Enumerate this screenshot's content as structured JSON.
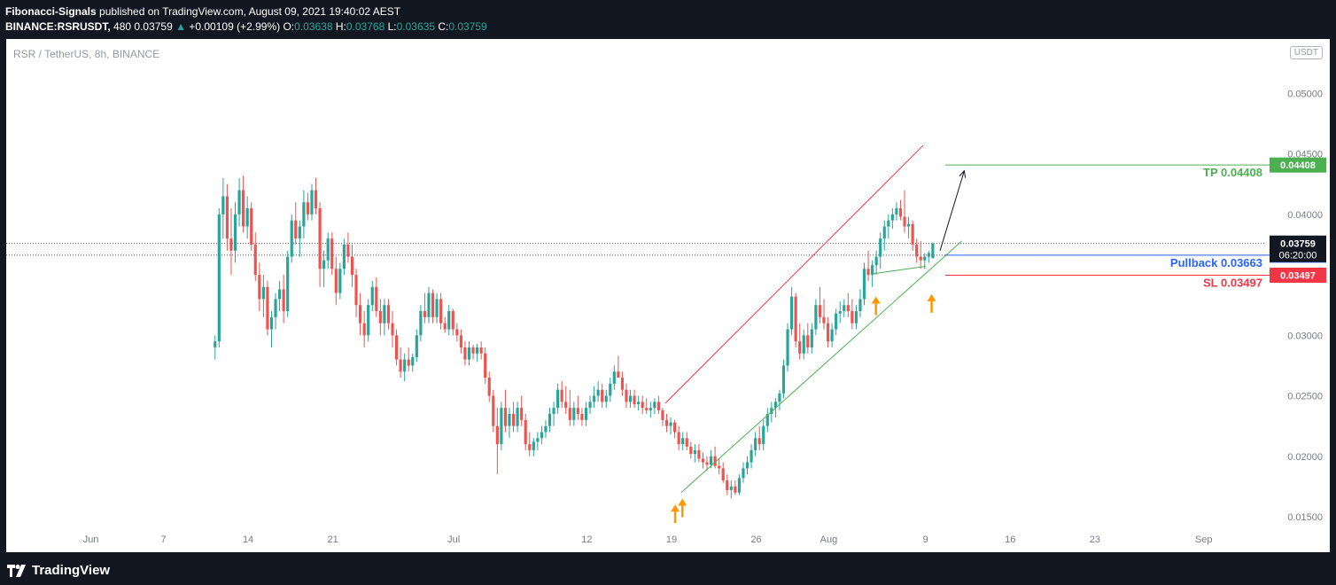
{
  "header": {
    "publisher": "Fibonacci-Signals",
    "published_text": "published on TradingView.com, August 09, 2021 19:40:02 AEST",
    "symbol": "BINANCE:RSRUSDT,",
    "interval": "480",
    "last": "0.03759",
    "change_arrow": "▲",
    "change": "+0.00109 (+2.99%)",
    "open_label": "O:",
    "open": "0.03638",
    "high_label": "H:",
    "high": "0.03768",
    "low_label": "L:",
    "low": "0.03635",
    "close_label": "C:",
    "close": "0.03759"
  },
  "chart": {
    "symbol_label": "RSR / TetherUS, 8h, BINANCE",
    "currency": "USDT"
  },
  "footer": {
    "brand": "TradingView",
    "logo_icon": "tradingview-logo-icon"
  },
  "colors": {
    "up": "#26a69a",
    "down": "#ef5350",
    "background": "#131722",
    "tp": "#4caf50",
    "sl": "#f23645",
    "pullback": "#2962ff",
    "price": "#131722",
    "arrow": "#ff9800",
    "channel_upper": "#f23645",
    "channel_lower": "#4caf50"
  },
  "chart_data": {
    "type": "candlestick",
    "symbol": "RSR / TetherUS",
    "interval": "8h",
    "exchange": "BINANCE",
    "ylim": [
      0.0139,
      0.0545
    ],
    "y_ticks": [
      "0.05000",
      "0.04500",
      "0.04000",
      "0.03000",
      "0.02500",
      "0.02000",
      "0.01500"
    ],
    "x_ticks": [
      {
        "label": "Jun",
        "day": 0
      },
      {
        "label": "7",
        "day": 6
      },
      {
        "label": "14",
        "day": 13
      },
      {
        "label": "21",
        "day": 20
      },
      {
        "label": "Jul",
        "day": 30
      },
      {
        "label": "12",
        "day": 41
      },
      {
        "label": "19",
        "day": 48
      },
      {
        "label": "26",
        "day": 55
      },
      {
        "label": "Aug",
        "day": 61
      },
      {
        "label": "9",
        "day": 69
      },
      {
        "label": "16",
        "day": 76
      },
      {
        "label": "23",
        "day": 83
      },
      {
        "label": "Sep",
        "day": 92
      }
    ],
    "x_range_days": [
      -7,
      97
    ],
    "levels": [
      {
        "name": "TP",
        "label": "TP 0.04408",
        "value": 0.04408,
        "badge": "0.04408",
        "color": "#4caf50"
      },
      {
        "name": "Pullback",
        "label": "Pullback 0.03663",
        "value": 0.03663,
        "badge": "0.03663",
        "color": "#2962ff"
      },
      {
        "name": "SL",
        "label": "SL 0.03497",
        "value": 0.03497,
        "badge": "0.03497",
        "color": "#f23645"
      }
    ],
    "last_price": {
      "value": 0.03759,
      "label": "0.03759",
      "countdown": "06:20:00"
    },
    "hline_dotted": [
      0.03759,
      0.03663
    ],
    "channel": {
      "upper": [
        {
          "day": 47.5,
          "price": 0.0244
        },
        {
          "day": 68.8,
          "price": 0.0457
        }
      ],
      "lower": [
        {
          "day": 48.8,
          "price": 0.017
        },
        {
          "day": 72.0,
          "price": 0.0378
        }
      ]
    },
    "projection_arrow": [
      {
        "day": 70.2,
        "price": 0.037
      },
      {
        "day": 72.2,
        "price": 0.0436
      }
    ],
    "support_line": [
      {
        "day": 64.7,
        "price": 0.0351
      },
      {
        "day": 69.0,
        "price": 0.0357
      }
    ],
    "up_markers": [
      {
        "day": 48.3,
        "price": 0.0152
      },
      {
        "day": 48.9,
        "price": 0.0157
      },
      {
        "day": 64.9,
        "price": 0.0324
      },
      {
        "day": 69.5,
        "price": 0.0326
      }
    ],
    "candles": [
      [
        0.029,
        0.03,
        0.028,
        0.0295
      ],
      [
        0.0295,
        0.0405,
        0.029,
        0.04
      ],
      [
        0.04,
        0.043,
        0.038,
        0.0415
      ],
      [
        0.0415,
        0.0425,
        0.037,
        0.038
      ],
      [
        0.038,
        0.0405,
        0.035,
        0.037
      ],
      [
        0.037,
        0.041,
        0.036,
        0.04
      ],
      [
        0.04,
        0.043,
        0.039,
        0.042
      ],
      [
        0.042,
        0.0432,
        0.0385,
        0.039
      ],
      [
        0.039,
        0.0415,
        0.038,
        0.0405
      ],
      [
        0.0405,
        0.041,
        0.037,
        0.0375
      ],
      [
        0.0375,
        0.0385,
        0.0345,
        0.035
      ],
      [
        0.035,
        0.036,
        0.032,
        0.033
      ],
      [
        0.033,
        0.035,
        0.0315,
        0.034
      ],
      [
        0.034,
        0.0345,
        0.03,
        0.0305
      ],
      [
        0.0305,
        0.032,
        0.029,
        0.0315
      ],
      [
        0.0315,
        0.0335,
        0.0305,
        0.033
      ],
      [
        0.033,
        0.0345,
        0.032,
        0.0338
      ],
      [
        0.0338,
        0.035,
        0.031,
        0.032
      ],
      [
        0.032,
        0.037,
        0.0315,
        0.0365
      ],
      [
        0.0365,
        0.04,
        0.036,
        0.0395
      ],
      [
        0.0395,
        0.041,
        0.0375,
        0.038
      ],
      [
        0.038,
        0.0395,
        0.0365,
        0.039
      ],
      [
        0.039,
        0.042,
        0.038,
        0.041
      ],
      [
        0.041,
        0.0418,
        0.0395,
        0.04
      ],
      [
        0.04,
        0.0425,
        0.0395,
        0.042
      ],
      [
        0.042,
        0.043,
        0.04,
        0.0405
      ],
      [
        0.0405,
        0.041,
        0.034,
        0.0355
      ],
      [
        0.0355,
        0.037,
        0.034,
        0.0362
      ],
      [
        0.0362,
        0.0385,
        0.0355,
        0.038
      ],
      [
        0.038,
        0.0385,
        0.035,
        0.0355
      ],
      [
        0.0355,
        0.0365,
        0.0325,
        0.0335
      ],
      [
        0.0335,
        0.036,
        0.033,
        0.0355
      ],
      [
        0.0355,
        0.038,
        0.035,
        0.0375
      ],
      [
        0.0375,
        0.0385,
        0.036,
        0.0365
      ],
      [
        0.0365,
        0.0375,
        0.034,
        0.035
      ],
      [
        0.035,
        0.0355,
        0.0315,
        0.0325
      ],
      [
        0.0325,
        0.0335,
        0.03,
        0.031
      ],
      [
        0.031,
        0.032,
        0.029,
        0.03
      ],
      [
        0.03,
        0.033,
        0.0295,
        0.0325
      ],
      [
        0.0325,
        0.0345,
        0.032,
        0.034
      ],
      [
        0.034,
        0.0348,
        0.0315,
        0.032
      ],
      [
        0.032,
        0.033,
        0.03,
        0.031
      ],
      [
        0.031,
        0.033,
        0.03,
        0.0325
      ],
      [
        0.0325,
        0.033,
        0.0305,
        0.031
      ],
      [
        0.031,
        0.032,
        0.029,
        0.03
      ],
      [
        0.03,
        0.0305,
        0.0275,
        0.028
      ],
      [
        0.028,
        0.029,
        0.0265,
        0.027
      ],
      [
        0.027,
        0.0285,
        0.0262,
        0.028
      ],
      [
        0.028,
        0.029,
        0.027,
        0.0275
      ],
      [
        0.0275,
        0.0285,
        0.027,
        0.0282
      ],
      [
        0.0282,
        0.0305,
        0.0278,
        0.03
      ],
      [
        0.03,
        0.0325,
        0.0295,
        0.032
      ],
      [
        0.032,
        0.0335,
        0.031,
        0.0315
      ],
      [
        0.0315,
        0.034,
        0.031,
        0.0335
      ],
      [
        0.0335,
        0.0338,
        0.031,
        0.0315
      ],
      [
        0.0315,
        0.0335,
        0.031,
        0.033
      ],
      [
        0.033,
        0.0335,
        0.0305,
        0.031
      ],
      [
        0.031,
        0.0315,
        0.0302,
        0.0305
      ],
      [
        0.0305,
        0.0325,
        0.03,
        0.032
      ],
      [
        0.032,
        0.0322,
        0.03,
        0.0305
      ],
      [
        0.0305,
        0.031,
        0.0295,
        0.03
      ],
      [
        0.03,
        0.0305,
        0.0285,
        0.029
      ],
      [
        0.029,
        0.0295,
        0.0275,
        0.028
      ],
      [
        0.028,
        0.0295,
        0.0275,
        0.029
      ],
      [
        0.029,
        0.0292,
        0.028,
        0.0285
      ],
      [
        0.0285,
        0.0293,
        0.0278,
        0.029
      ],
      [
        0.029,
        0.0295,
        0.028,
        0.0285
      ],
      [
        0.0285,
        0.029,
        0.026,
        0.0265
      ],
      [
        0.0265,
        0.027,
        0.0245,
        0.025
      ],
      [
        0.025,
        0.0255,
        0.022,
        0.0225
      ],
      [
        0.0225,
        0.024,
        0.0185,
        0.021
      ],
      [
        0.021,
        0.0245,
        0.0205,
        0.024
      ],
      [
        0.024,
        0.0255,
        0.022,
        0.0225
      ],
      [
        0.0225,
        0.024,
        0.0215,
        0.0235
      ],
      [
        0.0235,
        0.0245,
        0.022,
        0.0225
      ],
      [
        0.0225,
        0.0245,
        0.022,
        0.024
      ],
      [
        0.024,
        0.025,
        0.0225,
        0.023
      ],
      [
        0.023,
        0.0235,
        0.0205,
        0.021
      ],
      [
        0.021,
        0.022,
        0.02,
        0.0205
      ],
      [
        0.0205,
        0.0215,
        0.02,
        0.0212
      ],
      [
        0.0212,
        0.022,
        0.0205,
        0.0215
      ],
      [
        0.0215,
        0.0225,
        0.021,
        0.022
      ],
      [
        0.022,
        0.023,
        0.0215,
        0.0225
      ],
      [
        0.0225,
        0.024,
        0.022,
        0.0235
      ],
      [
        0.0235,
        0.0245,
        0.0225,
        0.024
      ],
      [
        0.024,
        0.026,
        0.0235,
        0.0255
      ],
      [
        0.0255,
        0.0262,
        0.024,
        0.0245
      ],
      [
        0.0245,
        0.0258,
        0.0235,
        0.024
      ],
      [
        0.024,
        0.0255,
        0.0225,
        0.023
      ],
      [
        0.023,
        0.0245,
        0.0225,
        0.024
      ],
      [
        0.024,
        0.025,
        0.023,
        0.0235
      ],
      [
        0.0235,
        0.024,
        0.0225,
        0.023
      ],
      [
        0.023,
        0.0245,
        0.0225,
        0.024
      ],
      [
        0.024,
        0.025,
        0.0235,
        0.0245
      ],
      [
        0.0245,
        0.0258,
        0.024,
        0.025
      ],
      [
        0.025,
        0.0262,
        0.0245,
        0.0255
      ],
      [
        0.0255,
        0.026,
        0.024,
        0.0245
      ],
      [
        0.0245,
        0.0255,
        0.024,
        0.025
      ],
      [
        0.025,
        0.0265,
        0.0245,
        0.026
      ],
      [
        0.026,
        0.0275,
        0.0255,
        0.027
      ],
      [
        0.027,
        0.0283,
        0.0265,
        0.0265
      ],
      [
        0.0265,
        0.027,
        0.025,
        0.0255
      ],
      [
        0.0255,
        0.026,
        0.024,
        0.0245
      ],
      [
        0.0245,
        0.0255,
        0.024,
        0.025
      ],
      [
        0.025,
        0.0255,
        0.024,
        0.0243
      ],
      [
        0.0243,
        0.025,
        0.0238,
        0.0245
      ],
      [
        0.0245,
        0.025,
        0.0235,
        0.024
      ],
      [
        0.024,
        0.0248,
        0.0235,
        0.0238
      ],
      [
        0.0238,
        0.0245,
        0.0232,
        0.024
      ],
      [
        0.024,
        0.0248,
        0.0235,
        0.0245
      ],
      [
        0.0245,
        0.025,
        0.0235,
        0.0238
      ],
      [
        0.0238,
        0.024,
        0.0225,
        0.023
      ],
      [
        0.023,
        0.0235,
        0.022,
        0.0225
      ],
      [
        0.0225,
        0.0232,
        0.0218,
        0.0228
      ],
      [
        0.0228,
        0.023,
        0.0215,
        0.022
      ],
      [
        0.022,
        0.0225,
        0.0205,
        0.021
      ],
      [
        0.021,
        0.022,
        0.0205,
        0.0215
      ],
      [
        0.0215,
        0.022,
        0.0205,
        0.0208
      ],
      [
        0.0208,
        0.0212,
        0.0198,
        0.0202
      ],
      [
        0.0202,
        0.021,
        0.0195,
        0.0205
      ],
      [
        0.0205,
        0.021,
        0.0195,
        0.0198
      ],
      [
        0.0198,
        0.0203,
        0.019,
        0.0195
      ],
      [
        0.0195,
        0.02,
        0.0188,
        0.0193
      ],
      [
        0.0193,
        0.0205,
        0.019,
        0.02
      ],
      [
        0.02,
        0.0208,
        0.019,
        0.0192
      ],
      [
        0.0192,
        0.0198,
        0.0185,
        0.019
      ],
      [
        0.019,
        0.0195,
        0.0178,
        0.018
      ],
      [
        0.018,
        0.0185,
        0.0168,
        0.0172
      ],
      [
        0.0172,
        0.018,
        0.0165,
        0.0175
      ],
      [
        0.0175,
        0.018,
        0.0168,
        0.017
      ],
      [
        0.017,
        0.0185,
        0.0168,
        0.0182
      ],
      [
        0.0182,
        0.0195,
        0.0178,
        0.019
      ],
      [
        0.019,
        0.02,
        0.0185,
        0.0195
      ],
      [
        0.0195,
        0.021,
        0.019,
        0.0205
      ],
      [
        0.0205,
        0.022,
        0.02,
        0.0215
      ],
      [
        0.0215,
        0.0225,
        0.0205,
        0.021
      ],
      [
        0.021,
        0.023,
        0.0205,
        0.0225
      ],
      [
        0.0225,
        0.024,
        0.022,
        0.0235
      ],
      [
        0.0235,
        0.0245,
        0.0228,
        0.024
      ],
      [
        0.024,
        0.0248,
        0.0232,
        0.0245
      ],
      [
        0.0245,
        0.0255,
        0.0238,
        0.0252
      ],
      [
        0.0252,
        0.028,
        0.0248,
        0.0275
      ],
      [
        0.0275,
        0.031,
        0.027,
        0.0305
      ],
      [
        0.0305,
        0.034,
        0.03,
        0.0332
      ],
      [
        0.0332,
        0.0335,
        0.029,
        0.0295
      ],
      [
        0.0295,
        0.031,
        0.028,
        0.0285
      ],
      [
        0.0285,
        0.0305,
        0.028,
        0.03
      ],
      [
        0.03,
        0.031,
        0.0285,
        0.029
      ],
      [
        0.029,
        0.031,
        0.0285,
        0.0305
      ],
      [
        0.0305,
        0.033,
        0.03,
        0.0325
      ],
      [
        0.0325,
        0.034,
        0.031,
        0.0315
      ],
      [
        0.0315,
        0.033,
        0.0305,
        0.031
      ],
      [
        0.031,
        0.0315,
        0.029,
        0.0295
      ],
      [
        0.0295,
        0.031,
        0.029,
        0.0305
      ],
      [
        0.0305,
        0.0322,
        0.03,
        0.0318
      ],
      [
        0.0318,
        0.0328,
        0.031,
        0.032
      ],
      [
        0.032,
        0.033,
        0.0315,
        0.0325
      ],
      [
        0.0325,
        0.0335,
        0.0315,
        0.032
      ],
      [
        0.032,
        0.033,
        0.0305,
        0.031
      ],
      [
        0.031,
        0.0325,
        0.0305,
        0.032
      ],
      [
        0.032,
        0.0338,
        0.0315,
        0.033
      ],
      [
        0.033,
        0.036,
        0.0325,
        0.0355
      ],
      [
        0.0355,
        0.037,
        0.0345,
        0.035
      ],
      [
        0.035,
        0.0362,
        0.034,
        0.0358
      ],
      [
        0.0358,
        0.037,
        0.035,
        0.0365
      ],
      [
        0.0365,
        0.0385,
        0.0355,
        0.038
      ],
      [
        0.038,
        0.0395,
        0.037,
        0.039
      ],
      [
        0.039,
        0.04,
        0.038,
        0.0395
      ],
      [
        0.0395,
        0.0405,
        0.0388,
        0.04
      ],
      [
        0.04,
        0.041,
        0.0395,
        0.0405
      ],
      [
        0.0405,
        0.0412,
        0.0395,
        0.0398
      ],
      [
        0.0398,
        0.042,
        0.0385,
        0.039
      ],
      [
        0.039,
        0.0398,
        0.038,
        0.0392
      ],
      [
        0.0392,
        0.0395,
        0.037,
        0.0375
      ],
      [
        0.0375,
        0.038,
        0.036,
        0.0365
      ],
      [
        0.0365,
        0.0378,
        0.0355,
        0.0362
      ],
      [
        0.0362,
        0.0368,
        0.0355,
        0.0365
      ],
      [
        0.0365,
        0.037,
        0.036,
        0.0368
      ],
      [
        0.03638,
        0.03768,
        0.03635,
        0.03759
      ]
    ]
  }
}
